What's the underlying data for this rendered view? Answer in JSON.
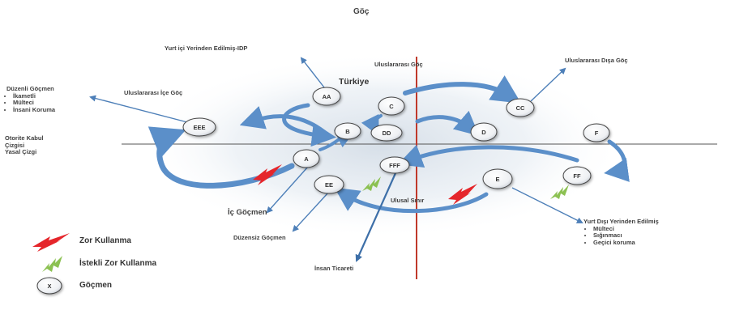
{
  "title": "Göç",
  "country_label": "Türkiye",
  "labels": {
    "yurt_ici": "Yurt içi Yerinden Edilmiş-IDP",
    "uluslararasi_goc": "Uluslararası Göç",
    "uluslararasi_disa": "Uluslararası Dışa Göç",
    "uluslararasi_ice": "Uluslararası İçe Göç",
    "otorite": [
      "Otorite Kabul",
      "Çizgisi",
      "Yasal Çizgi"
    ],
    "ulusal_sinir": "Ulusal Sınır",
    "ic_gocmen": "İç Göçmen",
    "duzensiz": "Düzensiz Göçmen",
    "insan_ticareti": "İnsan Ticareti",
    "duzenli_title": "Düzenli Göçmen",
    "duzenli_items": [
      "İkametli",
      "Mülteci",
      "İnsani Koruma"
    ],
    "yurt_disi_title": "Yurt Dışı Yerinden Edilmiş",
    "yurt_disi_items": [
      "Mülteci",
      "Sığınmacı",
      "Geçici koruma"
    ]
  },
  "nodes": {
    "AA": "AA",
    "C": "C",
    "CC": "CC",
    "EEE": "EEE",
    "B": "B",
    "DD": "DD",
    "D": "D",
    "F": "F",
    "A": "A",
    "FFF": "FFF",
    "EE": "EE",
    "E": "E",
    "FF": "FF"
  },
  "legend": {
    "zor": "Zor Kullanma",
    "istekli": "İstekli Zor Kullanma",
    "gocmen_symbol": "X",
    "gocmen": "Göçmen"
  },
  "colors": {
    "red_line": "#c0392b",
    "arrow_blue": "#5b8fc9",
    "arrow_dark": "#3d6fa8",
    "force_red": "#e5262b",
    "voluntary_green": "#8cc152"
  }
}
